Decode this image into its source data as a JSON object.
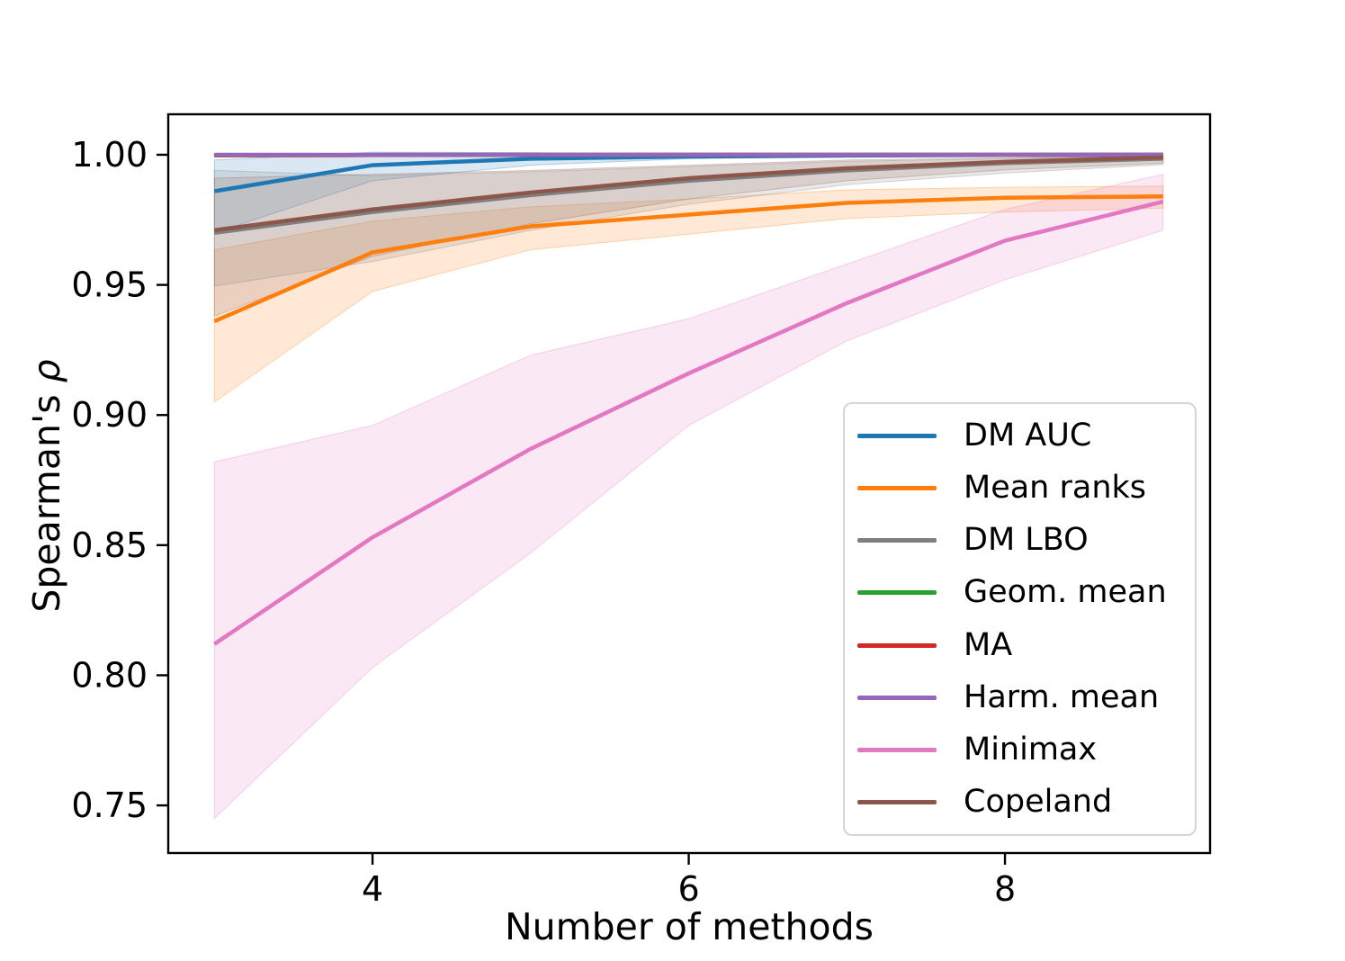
{
  "figure": {
    "ylabel_prefix": "Spearman's ",
    "ylabel_symbol": "ρ"
  },
  "chart_data": {
    "type": "line",
    "title": "",
    "xlabel": "Number of methods",
    "ylabel": "Spearman's ρ",
    "x": [
      3,
      4,
      5,
      6,
      7,
      8,
      9
    ],
    "xlim": [
      2.708,
      9.297
    ],
    "ylim": [
      0.7317,
      1.01556
    ],
    "xticks": [
      4,
      6,
      8
    ],
    "xtick_labels": [
      "4",
      "6",
      "8"
    ],
    "yticks": [
      0.75,
      0.8,
      0.85,
      0.9,
      0.95,
      1.0
    ],
    "ytick_labels": [
      "0.75",
      "0.80",
      "0.85",
      "0.90",
      "0.95",
      "1.00"
    ],
    "grid": false,
    "legend_position": "lower right inside",
    "band_opacity": 0.17,
    "line_width": 4.5,
    "axis_color": "#000000",
    "series": [
      {
        "name": "DM AUC",
        "color": "#1f77b4",
        "values": [
          0.986,
          0.996,
          0.9985,
          0.9993,
          0.9997,
          0.9999,
          1.0
        ],
        "band_lo": [
          0.97,
          0.99,
          0.996,
          0.9985,
          0.9993,
          0.9997,
          0.9999
        ],
        "band_hi": [
          0.998,
          1.001,
          1.0008,
          1.0003,
          1.0001,
          1.0,
          1.0
        ]
      },
      {
        "name": "Mean ranks",
        "color": "#ff7f0e",
        "values": [
          0.936,
          0.9625,
          0.9725,
          0.977,
          0.9815,
          0.9835,
          0.984
        ],
        "band_lo": [
          0.905,
          0.9475,
          0.9635,
          0.9695,
          0.9755,
          0.978,
          0.9795
        ],
        "band_hi": [
          0.9635,
          0.9745,
          0.98,
          0.983,
          0.9865,
          0.9875,
          0.988
        ]
      },
      {
        "name": "DM LBO",
        "color": "#7f7f7f",
        "values": [
          0.97,
          0.978,
          0.9845,
          0.99,
          0.994,
          0.9968,
          0.9985
        ],
        "band_lo": [
          0.9495,
          0.959,
          0.971,
          0.981,
          0.9885,
          0.993,
          0.9962
        ],
        "band_hi": [
          0.994,
          0.992,
          0.9935,
          0.9955,
          0.9975,
          0.9985,
          0.9995
        ]
      },
      {
        "name": "Geom. mean",
        "color": "#2ca02c",
        "values": [
          0.9998,
          0.9999,
          1.0,
          1.0,
          1.0,
          1.0,
          1.0
        ],
        "band_lo": [
          0.9994,
          0.9997,
          0.9999,
          1.0,
          1.0,
          1.0,
          1.0
        ],
        "band_hi": [
          1.0001,
          1.0001,
          1.0001,
          1.0,
          1.0,
          1.0,
          1.0
        ]
      },
      {
        "name": "MA",
        "color": "#d62728",
        "values": [
          0.9998,
          0.9999,
          1.0,
          1.0,
          1.0,
          1.0,
          1.0
        ],
        "band_lo": [
          0.9994,
          0.9997,
          0.9999,
          1.0,
          1.0,
          1.0,
          1.0
        ],
        "band_hi": [
          1.0001,
          1.0001,
          1.0001,
          1.0,
          1.0,
          1.0,
          1.0
        ]
      },
      {
        "name": "Harm. mean",
        "color": "#9467bd",
        "values": [
          1.0,
          1.0,
          1.0,
          1.0,
          1.0,
          1.0,
          1.0
        ],
        "band_lo": [
          0.9996,
          0.9998,
          1.0,
          1.0,
          1.0,
          1.0,
          1.0
        ],
        "band_hi": [
          1.0003,
          1.0002,
          1.0001,
          1.0,
          1.0,
          1.0,
          1.0
        ]
      },
      {
        "name": "Minimax",
        "color": "#e377c2",
        "values": [
          0.812,
          0.853,
          0.887,
          0.916,
          0.943,
          0.967,
          0.982
        ],
        "band_lo": [
          0.745,
          0.803,
          0.847,
          0.896,
          0.9285,
          0.952,
          0.971
        ],
        "band_hi": [
          0.882,
          0.896,
          0.923,
          0.937,
          0.958,
          0.979,
          0.9925
        ]
      },
      {
        "name": "Copeland",
        "color": "#8c564b",
        "values": [
          0.971,
          0.979,
          0.9855,
          0.991,
          0.9948,
          0.9973,
          0.999
        ],
        "band_lo": [
          0.938,
          0.961,
          0.9735,
          0.983,
          0.99,
          0.9942,
          0.9968
        ],
        "band_hi": [
          0.991,
          0.9925,
          0.994,
          0.996,
          0.998,
          0.9988,
          0.9997
        ]
      }
    ]
  },
  "legend": {
    "items": [
      {
        "label": "DM AUC",
        "color": "#1f77b4"
      },
      {
        "label": "Mean ranks",
        "color": "#ff7f0e"
      },
      {
        "label": "DM LBO",
        "color": "#7f7f7f"
      },
      {
        "label": "Geom. mean",
        "color": "#2ca02c"
      },
      {
        "label": "MA",
        "color": "#d62728"
      },
      {
        "label": "Harm. mean",
        "color": "#9467bd"
      },
      {
        "label": "Minimax",
        "color": "#e377c2"
      },
      {
        "label": "Copeland",
        "color": "#8c564b"
      }
    ]
  }
}
